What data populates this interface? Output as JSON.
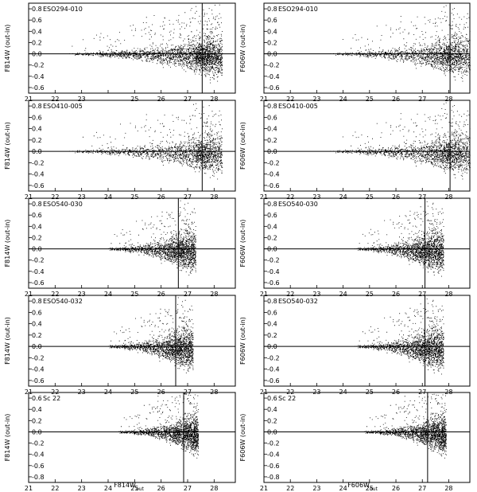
{
  "figure": {
    "xlabel_left": "F814W",
    "xlabel_left_sub": "out",
    "xlabel_right": "F606W",
    "xlabel_right_sub": "out"
  },
  "chart_data": [
    {
      "type": "scatter",
      "column": "left",
      "row": 0,
      "panel_label": "ESO294-010",
      "ylabel": "F814W (out-in)",
      "xlim": [
        21,
        28.8
      ],
      "ylim": [
        -0.7,
        0.9
      ],
      "yticks": [
        0.8,
        0.6,
        0.4,
        0.2,
        0.0,
        -0.2,
        -0.4,
        -0.6
      ],
      "xticks": [
        21,
        22,
        23,
        24,
        25,
        26,
        27,
        28
      ],
      "xtick_labels": [
        "21",
        "22",
        "23",
        "",
        "25",
        "26",
        "27",
        "28"
      ],
      "ytick_labels": [
        "0.8",
        "0.6",
        "0.4",
        "0.2",
        "0.0",
        "-0.2",
        "-0.4",
        "-0.6"
      ],
      "reference_y": 0.0,
      "completeness_x": 27.55,
      "spread_start": 22.3,
      "peak": 27.6,
      "max_mag": 28.3
    },
    {
      "type": "scatter",
      "column": "right",
      "row": 0,
      "panel_label": "ESO294-010",
      "ylabel": "F606W (out-in)",
      "xlim": [
        21,
        28.8
      ],
      "ylim": [
        -0.7,
        0.9
      ],
      "yticks": [
        0.8,
        0.6,
        0.4,
        0.2,
        0.0,
        -0.2,
        -0.4,
        -0.6
      ],
      "xticks": [
        21,
        22,
        23,
        24,
        25,
        26,
        27,
        28
      ],
      "xtick_labels": [
        "21",
        "22",
        "23",
        "24",
        "25",
        "26",
        "27",
        "28"
      ],
      "ytick_labels": [
        "0.8",
        "0.6",
        "0.4",
        "0.2",
        "0.0",
        "-0.2",
        "-0.4",
        "-0.6"
      ],
      "reference_y": 0.0,
      "completeness_x": 28.05,
      "spread_start": 23.3,
      "peak": 28.0,
      "max_mag": 28.8
    },
    {
      "type": "scatter",
      "column": "left",
      "row": 1,
      "panel_label": "ESO410-005",
      "ylabel": "F814W (out-in)",
      "xlim": [
        21,
        28.8
      ],
      "ylim": [
        -0.7,
        0.9
      ],
      "yticks": [
        0.8,
        0.6,
        0.4,
        0.2,
        0.0,
        -0.2,
        -0.4,
        -0.6
      ],
      "xticks": [
        21,
        22,
        23,
        24,
        25,
        26,
        27,
        28
      ],
      "xtick_labels": [
        "21",
        "22",
        "23",
        "24",
        "25",
        "26",
        "27",
        "28"
      ],
      "ytick_labels": [
        "0.8",
        "0.6",
        "0.4",
        "0.2",
        "0.0",
        "-0.2",
        "-0.4",
        "-0.6"
      ],
      "reference_y": 0.0,
      "completeness_x": 27.55,
      "spread_start": 22.3,
      "peak": 27.6,
      "max_mag": 28.3
    },
    {
      "type": "scatter",
      "column": "right",
      "row": 1,
      "panel_label": "ESO410-005",
      "ylabel": "F606W (out-in)",
      "xlim": [
        21,
        28.8
      ],
      "ylim": [
        -0.7,
        0.9
      ],
      "yticks": [
        0.8,
        0.6,
        0.4,
        0.2,
        0.0,
        -0.2,
        -0.4,
        -0.6
      ],
      "xticks": [
        21,
        22,
        23,
        24,
        25,
        26,
        27,
        28
      ],
      "xtick_labels": [
        "21",
        "22",
        "23",
        "24",
        "25",
        "26",
        "27",
        "28"
      ],
      "ytick_labels": [
        "0.8",
        "0.6",
        "0.4",
        "0.2",
        "0.0",
        "-0.2",
        "-0.4",
        "-0.6"
      ],
      "reference_y": 0.0,
      "completeness_x": 28.05,
      "spread_start": 23.3,
      "peak": 28.0,
      "max_mag": 28.8
    },
    {
      "type": "scatter",
      "column": "left",
      "row": 2,
      "panel_label": "ESO540-030",
      "ylabel": "F814W (out-in)",
      "xlim": [
        21,
        28.8
      ],
      "ylim": [
        -0.7,
        0.9
      ],
      "yticks": [
        0.8,
        0.6,
        0.4,
        0.2,
        0.0,
        -0.2,
        -0.4,
        -0.6
      ],
      "xticks": [
        21,
        22,
        23,
        24,
        25,
        26,
        27,
        28
      ],
      "xtick_labels": [
        "21",
        "22",
        "23",
        "24",
        "25",
        "26",
        "27",
        "28"
      ],
      "ytick_labels": [
        "0.8",
        "0.6",
        "0.4",
        "0.2",
        "0.0",
        "-0.2",
        "-0.4",
        "-0.6"
      ],
      "reference_y": 0.0,
      "completeness_x": 26.65,
      "spread_start": 23.8,
      "peak": 26.8,
      "max_mag": 27.3
    },
    {
      "type": "scatter",
      "column": "right",
      "row": 2,
      "panel_label": "ESO540-030",
      "ylabel": "F606W (out-in)",
      "xlim": [
        21,
        28.8
      ],
      "ylim": [
        -0.7,
        0.9
      ],
      "yticks": [
        0.8,
        0.6,
        0.4,
        0.2,
        0.0,
        -0.2,
        -0.4,
        -0.6
      ],
      "xticks": [
        21,
        22,
        23,
        24,
        25,
        26,
        27,
        28
      ],
      "xtick_labels": [
        "21",
        "22",
        "23",
        "24",
        "25",
        "26",
        "27",
        "28"
      ],
      "ytick_labels": [
        "0.8",
        "0.6",
        "0.4",
        "0.2",
        "0.0",
        "-0.2",
        "-0.4",
        "-0.6"
      ],
      "reference_y": 0.0,
      "completeness_x": 27.1,
      "spread_start": 24.3,
      "peak": 27.2,
      "max_mag": 27.8
    },
    {
      "type": "scatter",
      "column": "left",
      "row": 3,
      "panel_label": "ESO540-032",
      "ylabel": "F814W (out-in)",
      "xlim": [
        21,
        28.8
      ],
      "ylim": [
        -0.7,
        0.9
      ],
      "yticks": [
        0.8,
        0.6,
        0.4,
        0.2,
        0.0,
        -0.2,
        -0.4,
        -0.6
      ],
      "xticks": [
        21,
        22,
        23,
        24,
        25,
        26,
        27,
        28
      ],
      "xtick_labels": [
        "21",
        "22",
        "23",
        "24",
        "25",
        "26",
        "27",
        "28"
      ],
      "ytick_labels": [
        "0.8",
        "0.6",
        "0.4",
        "0.2",
        "0.0",
        "-0.2",
        "-0.4",
        "-0.6"
      ],
      "reference_y": 0.0,
      "completeness_x": 26.55,
      "spread_start": 23.8,
      "peak": 26.7,
      "max_mag": 27.2
    },
    {
      "type": "scatter",
      "column": "right",
      "row": 3,
      "panel_label": "ESO540-032",
      "ylabel": "F606W (out-in)",
      "xlim": [
        21,
        28.8
      ],
      "ylim": [
        -0.7,
        0.9
      ],
      "yticks": [
        0.8,
        0.6,
        0.4,
        0.2,
        0.0,
        -0.2,
        -0.4,
        -0.6
      ],
      "xticks": [
        21,
        22,
        23,
        24,
        25,
        26,
        27,
        28
      ],
      "xtick_labels": [
        "21",
        "22",
        "23",
        "24",
        "25",
        "26",
        "27",
        "28"
      ],
      "ytick_labels": [
        "0.8",
        "0.6",
        "0.4",
        "0.2",
        "0.0",
        "-0.2",
        "-0.4",
        "-0.6"
      ],
      "reference_y": 0.0,
      "completeness_x": 27.1,
      "spread_start": 24.3,
      "peak": 27.2,
      "max_mag": 27.8
    },
    {
      "type": "scatter",
      "column": "left",
      "row": 4,
      "panel_label": "Sc 22",
      "ylabel": "F814W (out-in)",
      "xlim": [
        21,
        28.8
      ],
      "ylim": [
        -0.9,
        0.7
      ],
      "yticks": [
        0.6,
        0.4,
        0.2,
        0.0,
        -0.2,
        -0.4,
        -0.6,
        -0.8
      ],
      "xticks": [
        21,
        22,
        23,
        24,
        25,
        26,
        27,
        28
      ],
      "xtick_labels": [
        "21",
        "22",
        "23",
        "24",
        "25",
        "26",
        "27",
        "28"
      ],
      "ytick_labels": [
        "0.6",
        "0.4",
        "0.2",
        "0.0",
        "-0.2",
        "-0.4",
        "-0.6",
        "-0.8"
      ],
      "reference_y": 0.0,
      "completeness_x": 26.85,
      "spread_start": 24.2,
      "peak": 27.1,
      "max_mag": 27.4
    },
    {
      "type": "scatter",
      "column": "right",
      "row": 4,
      "panel_label": "Sc 22",
      "ylabel": "F606W (out-in)",
      "xlim": [
        21,
        28.8
      ],
      "ylim": [
        -0.9,
        0.7
      ],
      "yticks": [
        0.6,
        0.4,
        0.2,
        0.0,
        -0.2,
        -0.4,
        -0.6,
        -0.8
      ],
      "xticks": [
        21,
        22,
        23,
        24,
        25,
        26,
        27,
        28
      ],
      "xtick_labels": [
        "21",
        "22",
        "23",
        "24",
        "25",
        "26",
        "27",
        "28"
      ],
      "ytick_labels": [
        "0.6",
        "0.4",
        "0.2",
        "0.0",
        "-0.2",
        "-0.4",
        "-0.6",
        "-0.8"
      ],
      "reference_y": 0.0,
      "completeness_x": 27.2,
      "spread_start": 24.6,
      "peak": 27.6,
      "max_mag": 27.9
    }
  ]
}
